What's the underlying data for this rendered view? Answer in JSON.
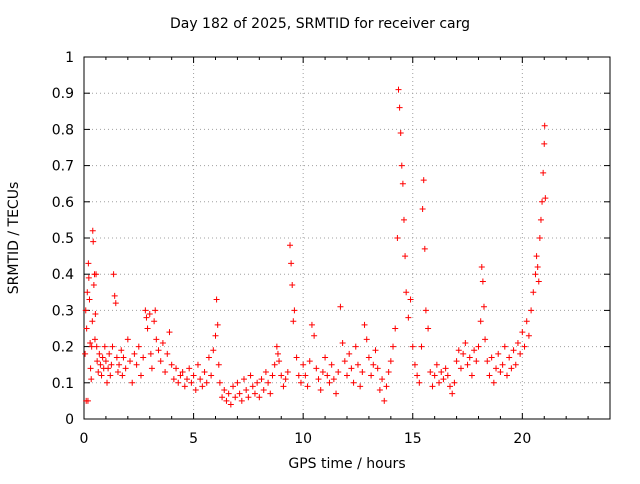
{
  "chart_data": {
    "type": "scatter",
    "title": "Day 182 of 2025, SRMTID for receiver carg",
    "xlabel": "GPS time / hours",
    "ylabel": "SRMTID / TECUs",
    "xlim": [
      0,
      24
    ],
    "ylim": [
      0,
      1
    ],
    "x_ticks": [
      0,
      5,
      10,
      15,
      20
    ],
    "x_tick_labels": [
      "0",
      "5",
      "10",
      "15",
      "20"
    ],
    "y_ticks": [
      0,
      0.1,
      0.2,
      0.3,
      0.4,
      0.5,
      0.6,
      0.7,
      0.8,
      0.9,
      1
    ],
    "y_tick_labels": [
      "0",
      "0.1",
      "0.2",
      "0.3",
      "0.4",
      "0.5",
      "0.6",
      "0.7",
      "0.8",
      "0.9",
      "1"
    ],
    "grid": true,
    "marker": "+",
    "color": "#ff0000",
    "series": [
      {
        "name": "SRMTID",
        "points": [
          [
            0.05,
            0.18
          ],
          [
            0.08,
            0.3
          ],
          [
            0.1,
            0.05
          ],
          [
            0.12,
            0.25
          ],
          [
            0.15,
            0.35
          ],
          [
            0.18,
            0.05
          ],
          [
            0.2,
            0.43
          ],
          [
            0.22,
            0.39
          ],
          [
            0.25,
            0.33
          ],
          [
            0.28,
            0.21
          ],
          [
            0.3,
            0.14
          ],
          [
            0.33,
            0.11
          ],
          [
            0.35,
            0.2
          ],
          [
            0.38,
            0.27
          ],
          [
            0.4,
            0.52
          ],
          [
            0.42,
            0.49
          ],
          [
            0.45,
            0.37
          ],
          [
            0.48,
            0.4
          ],
          [
            0.5,
            0.22
          ],
          [
            0.52,
            0.29
          ],
          [
            0.55,
            0.4
          ],
          [
            0.58,
            0.2
          ],
          [
            0.6,
            0.16
          ],
          [
            0.65,
            0.13
          ],
          [
            0.7,
            0.18
          ],
          [
            0.75,
            0.15
          ],
          [
            0.8,
            0.12
          ],
          [
            0.85,
            0.17
          ],
          [
            0.9,
            0.14
          ],
          [
            0.95,
            0.2
          ],
          [
            1.0,
            0.16
          ],
          [
            1.05,
            0.1
          ],
          [
            1.1,
            0.14
          ],
          [
            1.15,
            0.18
          ],
          [
            1.2,
            0.12
          ],
          [
            1.25,
            0.15
          ],
          [
            1.3,
            0.2
          ],
          [
            1.35,
            0.4
          ],
          [
            1.4,
            0.34
          ],
          [
            1.45,
            0.32
          ],
          [
            1.5,
            0.17
          ],
          [
            1.55,
            0.13
          ],
          [
            1.6,
            0.15
          ],
          [
            1.7,
            0.19
          ],
          [
            1.75,
            0.12
          ],
          [
            1.8,
            0.17
          ],
          [
            1.9,
            0.14
          ],
          [
            2.0,
            0.22
          ],
          [
            2.1,
            0.16
          ],
          [
            2.2,
            0.1
          ],
          [
            2.3,
            0.18
          ],
          [
            2.4,
            0.15
          ],
          [
            2.5,
            0.2
          ],
          [
            2.6,
            0.12
          ],
          [
            2.7,
            0.17
          ],
          [
            2.8,
            0.3
          ],
          [
            2.85,
            0.28
          ],
          [
            2.9,
            0.25
          ],
          [
            3.0,
            0.29
          ],
          [
            3.05,
            0.18
          ],
          [
            3.1,
            0.14
          ],
          [
            3.2,
            0.27
          ],
          [
            3.25,
            0.3
          ],
          [
            3.3,
            0.22
          ],
          [
            3.4,
            0.19
          ],
          [
            3.5,
            0.16
          ],
          [
            3.6,
            0.21
          ],
          [
            3.7,
            0.13
          ],
          [
            3.8,
            0.18
          ],
          [
            3.9,
            0.24
          ],
          [
            4.0,
            0.15
          ],
          [
            4.1,
            0.11
          ],
          [
            4.2,
            0.14
          ],
          [
            4.3,
            0.1
          ],
          [
            4.4,
            0.12
          ],
          [
            4.5,
            0.13
          ],
          [
            4.6,
            0.09
          ],
          [
            4.7,
            0.11
          ],
          [
            4.8,
            0.14
          ],
          [
            4.9,
            0.1
          ],
          [
            5.0,
            0.12
          ],
          [
            5.1,
            0.08
          ],
          [
            5.2,
            0.15
          ],
          [
            5.3,
            0.11
          ],
          [
            5.4,
            0.09
          ],
          [
            5.5,
            0.13
          ],
          [
            5.6,
            0.1
          ],
          [
            5.7,
            0.17
          ],
          [
            5.8,
            0.12
          ],
          [
            5.9,
            0.19
          ],
          [
            6.0,
            0.23
          ],
          [
            6.05,
            0.33
          ],
          [
            6.1,
            0.26
          ],
          [
            6.15,
            0.15
          ],
          [
            6.2,
            0.1
          ],
          [
            6.3,
            0.06
          ],
          [
            6.4,
            0.08
          ],
          [
            6.5,
            0.05
          ],
          [
            6.6,
            0.07
          ],
          [
            6.7,
            0.04
          ],
          [
            6.8,
            0.09
          ],
          [
            6.9,
            0.06
          ],
          [
            7.0,
            0.1
          ],
          [
            7.1,
            0.07
          ],
          [
            7.2,
            0.05
          ],
          [
            7.3,
            0.11
          ],
          [
            7.4,
            0.08
          ],
          [
            7.5,
            0.06
          ],
          [
            7.6,
            0.12
          ],
          [
            7.7,
            0.09
          ],
          [
            7.8,
            0.07
          ],
          [
            7.9,
            0.1
          ],
          [
            8.0,
            0.06
          ],
          [
            8.1,
            0.11
          ],
          [
            8.2,
            0.08
          ],
          [
            8.3,
            0.13
          ],
          [
            8.4,
            0.1
          ],
          [
            8.5,
            0.07
          ],
          [
            8.6,
            0.12
          ],
          [
            8.7,
            0.15
          ],
          [
            8.8,
            0.2
          ],
          [
            8.85,
            0.18
          ],
          [
            8.9,
            0.16
          ],
          [
            9.0,
            0.12
          ],
          [
            9.1,
            0.09
          ],
          [
            9.2,
            0.11
          ],
          [
            9.3,
            0.13
          ],
          [
            9.4,
            0.48
          ],
          [
            9.45,
            0.43
          ],
          [
            9.5,
            0.37
          ],
          [
            9.55,
            0.27
          ],
          [
            9.6,
            0.3
          ],
          [
            9.7,
            0.17
          ],
          [
            9.8,
            0.12
          ],
          [
            9.9,
            0.1
          ],
          [
            10.0,
            0.15
          ],
          [
            10.1,
            0.12
          ],
          [
            10.2,
            0.09
          ],
          [
            10.3,
            0.16
          ],
          [
            10.4,
            0.26
          ],
          [
            10.5,
            0.23
          ],
          [
            10.6,
            0.14
          ],
          [
            10.7,
            0.11
          ],
          [
            10.8,
            0.08
          ],
          [
            10.9,
            0.13
          ],
          [
            11.0,
            0.17
          ],
          [
            11.1,
            0.12
          ],
          [
            11.2,
            0.1
          ],
          [
            11.3,
            0.15
          ],
          [
            11.4,
            0.11
          ],
          [
            11.5,
            0.07
          ],
          [
            11.6,
            0.13
          ],
          [
            11.7,
            0.31
          ],
          [
            11.8,
            0.21
          ],
          [
            11.9,
            0.16
          ],
          [
            12.0,
            0.12
          ],
          [
            12.1,
            0.18
          ],
          [
            12.2,
            0.14
          ],
          [
            12.3,
            0.1
          ],
          [
            12.4,
            0.2
          ],
          [
            12.5,
            0.15
          ],
          [
            12.6,
            0.09
          ],
          [
            12.7,
            0.13
          ],
          [
            12.8,
            0.26
          ],
          [
            12.9,
            0.22
          ],
          [
            13.0,
            0.17
          ],
          [
            13.1,
            0.12
          ],
          [
            13.2,
            0.15
          ],
          [
            13.3,
            0.19
          ],
          [
            13.4,
            0.14
          ],
          [
            13.5,
            0.08
          ],
          [
            13.6,
            0.11
          ],
          [
            13.7,
            0.05
          ],
          [
            13.8,
            0.09
          ],
          [
            13.9,
            0.13
          ],
          [
            14.0,
            0.16
          ],
          [
            14.1,
            0.2
          ],
          [
            14.2,
            0.25
          ],
          [
            14.3,
            0.5
          ],
          [
            14.35,
            0.91
          ],
          [
            14.4,
            0.86
          ],
          [
            14.45,
            0.79
          ],
          [
            14.5,
            0.7
          ],
          [
            14.55,
            0.65
          ],
          [
            14.6,
            0.55
          ],
          [
            14.65,
            0.45
          ],
          [
            14.7,
            0.35
          ],
          [
            14.8,
            0.28
          ],
          [
            14.9,
            0.33
          ],
          [
            15.0,
            0.2
          ],
          [
            15.1,
            0.15
          ],
          [
            15.2,
            0.12
          ],
          [
            15.3,
            0.1
          ],
          [
            15.4,
            0.2
          ],
          [
            15.45,
            0.58
          ],
          [
            15.5,
            0.66
          ],
          [
            15.55,
            0.47
          ],
          [
            15.6,
            0.3
          ],
          [
            15.7,
            0.25
          ],
          [
            15.8,
            0.13
          ],
          [
            15.9,
            0.09
          ],
          [
            16.0,
            0.12
          ],
          [
            16.1,
            0.15
          ],
          [
            16.2,
            0.1
          ],
          [
            16.3,
            0.13
          ],
          [
            16.4,
            0.11
          ],
          [
            16.5,
            0.14
          ],
          [
            16.6,
            0.12
          ],
          [
            16.7,
            0.09
          ],
          [
            16.8,
            0.07
          ],
          [
            16.9,
            0.1
          ],
          [
            17.0,
            0.16
          ],
          [
            17.1,
            0.19
          ],
          [
            17.2,
            0.14
          ],
          [
            17.3,
            0.18
          ],
          [
            17.4,
            0.21
          ],
          [
            17.5,
            0.15
          ],
          [
            17.6,
            0.17
          ],
          [
            17.7,
            0.12
          ],
          [
            17.8,
            0.19
          ],
          [
            17.9,
            0.16
          ],
          [
            18.0,
            0.2
          ],
          [
            18.1,
            0.27
          ],
          [
            18.15,
            0.42
          ],
          [
            18.2,
            0.38
          ],
          [
            18.25,
            0.31
          ],
          [
            18.3,
            0.22
          ],
          [
            18.4,
            0.16
          ],
          [
            18.5,
            0.12
          ],
          [
            18.6,
            0.17
          ],
          [
            18.7,
            0.1
          ],
          [
            18.8,
            0.14
          ],
          [
            18.9,
            0.18
          ],
          [
            19.0,
            0.13
          ],
          [
            19.1,
            0.15
          ],
          [
            19.2,
            0.2
          ],
          [
            19.3,
            0.12
          ],
          [
            19.4,
            0.17
          ],
          [
            19.5,
            0.14
          ],
          [
            19.6,
            0.19
          ],
          [
            19.7,
            0.15
          ],
          [
            19.8,
            0.21
          ],
          [
            19.9,
            0.18
          ],
          [
            20.0,
            0.24
          ],
          [
            20.1,
            0.2
          ],
          [
            20.2,
            0.27
          ],
          [
            20.3,
            0.23
          ],
          [
            20.4,
            0.3
          ],
          [
            20.5,
            0.35
          ],
          [
            20.6,
            0.4
          ],
          [
            20.65,
            0.45
          ],
          [
            20.7,
            0.42
          ],
          [
            20.75,
            0.38
          ],
          [
            20.8,
            0.5
          ],
          [
            20.85,
            0.55
          ],
          [
            20.9,
            0.6
          ],
          [
            20.95,
            0.68
          ],
          [
            21.0,
            0.76
          ],
          [
            21.02,
            0.81
          ],
          [
            21.05,
            0.61
          ]
        ]
      }
    ]
  }
}
